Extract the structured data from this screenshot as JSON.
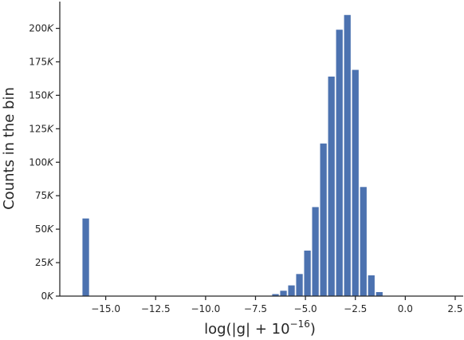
{
  "chart_data": {
    "type": "bar",
    "xlabel_main": "log(|g| + 10",
    "xlabel_sup": "−16",
    "xlabel_end": ")",
    "ylabel": "Counts in the bin",
    "xlim": [
      -17.3,
      2.9
    ],
    "ylim": [
      0,
      220000
    ],
    "x_ticks": [
      -15.0,
      -12.5,
      -10.0,
      -7.5,
      -5.0,
      -2.5,
      0.0,
      2.5
    ],
    "x_tick_labels": [
      "−15.0",
      "−12.5",
      "−10.0",
      "−7.5",
      "−5.0",
      "−2.5",
      "0.0",
      "2.5"
    ],
    "y_ticks": [
      0,
      25000,
      50000,
      75000,
      100000,
      125000,
      150000,
      175000,
      200000
    ],
    "y_tick_nums": [
      "0",
      "25",
      "50",
      "75",
      "100",
      "125",
      "150",
      "175",
      "200"
    ],
    "y_tick_suffix": "K",
    "bar_color": "#4c72b0",
    "bins": [
      {
        "x": -16.0,
        "value": 58000
      },
      {
        "x": -6.5,
        "value": 1500
      },
      {
        "x": -6.1,
        "value": 4000
      },
      {
        "x": -5.7,
        "value": 8000
      },
      {
        "x": -5.3,
        "value": 16500
      },
      {
        "x": -4.9,
        "value": 34000
      },
      {
        "x": -4.5,
        "value": 66500
      },
      {
        "x": -4.1,
        "value": 114000
      },
      {
        "x": -3.7,
        "value": 164000
      },
      {
        "x": -3.3,
        "value": 199000
      },
      {
        "x": -2.9,
        "value": 210000
      },
      {
        "x": -2.5,
        "value": 169000
      },
      {
        "x": -2.1,
        "value": 81500
      },
      {
        "x": -1.7,
        "value": 15500
      },
      {
        "x": -1.3,
        "value": 3000
      }
    ]
  }
}
